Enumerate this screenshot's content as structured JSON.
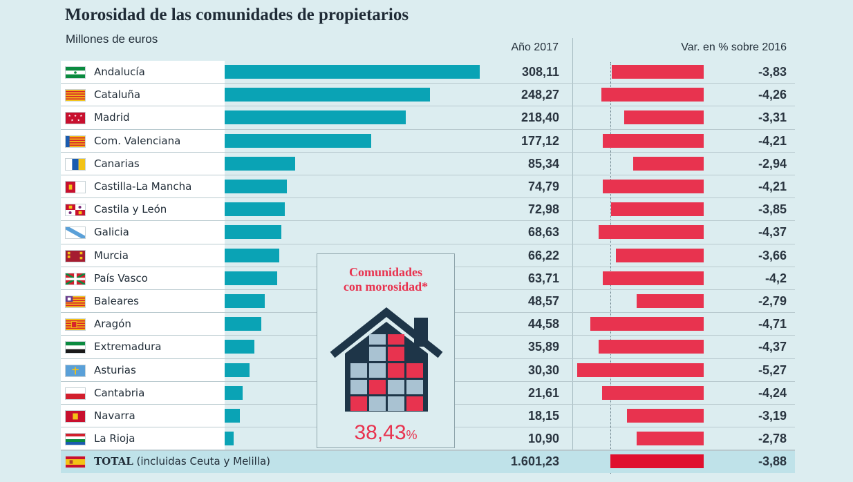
{
  "title": "Morosidad de las comunidades de propietarios",
  "subtitle": "Millones de euros",
  "col_year": "Año 2017",
  "col_var": "Var. en % sobre 2016",
  "inset": {
    "title_line1": "Comunidades",
    "title_line2": "con morosidad*",
    "value": "38,43",
    "unit": "%",
    "colors": {
      "dark": "#1e3548",
      "window_red": "#e8334f",
      "window_blue": "#a9c2d2"
    }
  },
  "colors": {
    "bar": "#0aa3b5",
    "neg_bar": "#e8334f",
    "background": "#dcedf0"
  },
  "chart_data": {
    "type": "bar",
    "categories": [
      "Andalucía",
      "Cataluña",
      "Madrid",
      "Com. Valenciana",
      "Canarias",
      "Castilla-La Mancha",
      "Castila y León",
      "Galicia",
      "Murcia",
      "País Vasco",
      "Baleares",
      "Aragón",
      "Extremadura",
      "Asturias",
      "Cantabria",
      "Navarra",
      "La Rioja"
    ],
    "labels": [
      "308,11",
      "248,27",
      "218,40",
      "177,12",
      "85,34",
      "74,79",
      "72,98",
      "68,63",
      "66,22",
      "63,71",
      "48,57",
      "44,58",
      "35,89",
      "30,30",
      "21,61",
      "18,15",
      "10,90"
    ],
    "values": [
      308.11,
      248.27,
      218.4,
      177.12,
      85.34,
      74.79,
      72.98,
      68.63,
      66.22,
      63.71,
      48.57,
      44.58,
      35.89,
      30.3,
      21.61,
      18.15,
      10.9
    ],
    "variation_labels": [
      "-3,83",
      "-4,26",
      "-3,31",
      "-4,21",
      "-2,94",
      "-4,21",
      "-3,85",
      "-4,37",
      "-3,66",
      "-4,2",
      "-2,79",
      "-4,71",
      "-4,37",
      "-5,27",
      "-4,24",
      "-3,19",
      "-2,78"
    ],
    "variation": [
      -3.83,
      -4.26,
      -3.31,
      -4.21,
      -2.94,
      -4.21,
      -3.85,
      -4.37,
      -3.66,
      -4.2,
      -2.79,
      -4.71,
      -4.37,
      -5.27,
      -4.24,
      -3.19,
      -2.78
    ],
    "flags": [
      "andalucia-flag-icon",
      "cataluna-flag-icon",
      "madrid-flag-icon",
      "valencia-flag-icon",
      "canarias-flag-icon",
      "castilla-la-mancha-flag-icon",
      "castilla-leon-flag-icon",
      "galicia-flag-icon",
      "murcia-flag-icon",
      "pais-vasco-flag-icon",
      "baleares-flag-icon",
      "aragon-flag-icon",
      "extremadura-flag-icon",
      "asturias-flag-icon",
      "cantabria-flag-icon",
      "navarra-flag-icon",
      "la-rioja-flag-icon"
    ],
    "total": {
      "label_bold": "TOTAL",
      "label_rest": "(incluidas Ceuta y Melilla)",
      "value_label": "1.601,23",
      "value": 1601.23,
      "variation_label": "-3,88",
      "variation": -3.88,
      "flag": "spain-flag-icon"
    }
  }
}
